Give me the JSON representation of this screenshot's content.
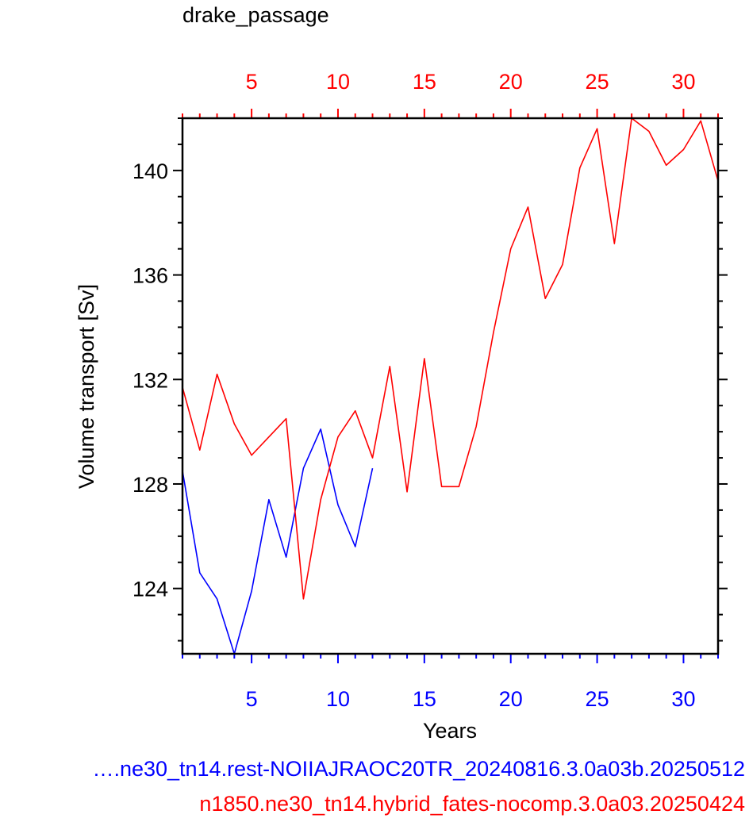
{
  "chart_data": {
    "type": "line",
    "title": "drake_passage",
    "xlabel": "Years",
    "ylabel": "Volume transport [Sv]",
    "xlim": [
      1,
      32
    ],
    "ylim": [
      121.5,
      142
    ],
    "y_ticks": [
      "124",
      "128",
      "132",
      "136",
      "140"
    ],
    "x_ticks_bottom": [
      "5",
      "10",
      "15",
      "20",
      "25",
      "30"
    ],
    "x_ticks_top": [
      "5",
      "10",
      "15",
      "20",
      "25",
      "30"
    ],
    "grid": false,
    "series": [
      {
        "name": "….ne30_tn14.rest-NOIIAJRAOC20TR_20240816.3.0a03b.20250512",
        "color": "#0000ff",
        "axis": "bottom",
        "x": [
          1,
          2,
          3,
          4,
          5,
          6,
          7,
          8,
          9,
          10,
          11,
          12
        ],
        "y": [
          128.5,
          124.6,
          123.6,
          121.5,
          123.9,
          127.4,
          125.2,
          128.6,
          130.1,
          127.2,
          125.6,
          128.6
        ]
      },
      {
        "name": "n1850.ne30_tn14.hybrid_fates-nocomp.3.0a03.20250424",
        "color": "#ff0000",
        "axis": "top",
        "x": [
          1,
          2,
          3,
          4,
          5,
          6,
          7,
          8,
          9,
          10,
          11,
          12,
          13,
          14,
          15,
          16,
          17,
          18,
          19,
          20,
          21,
          22,
          23,
          24,
          25,
          26,
          27,
          28,
          29,
          30,
          31,
          32
        ],
        "y": [
          131.7,
          129.3,
          132.2,
          130.3,
          129.1,
          129.8,
          130.5,
          123.6,
          127.4,
          129.8,
          130.8,
          129.0,
          132.5,
          127.7,
          132.8,
          127.9,
          127.9,
          130.2,
          133.8,
          137.0,
          138.6,
          135.1,
          136.4,
          140.1,
          141.6,
          137.2,
          142.0,
          141.5,
          140.2,
          140.8,
          141.9,
          139.6
        ]
      }
    ]
  }
}
